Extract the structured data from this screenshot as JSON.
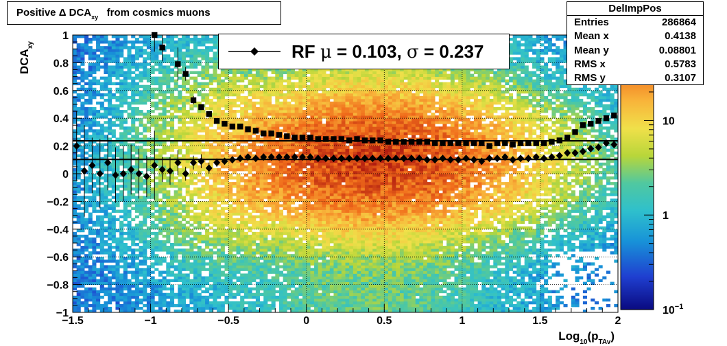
{
  "chart_data": {
    "type": "heatmap",
    "title": "Positive Δ DCA",
    "title_sub": "xy",
    "title_suffix": "from cosmics muons",
    "xlabel": "Log",
    "xlabel_sub1": "10",
    "xlabel_mid": "(p",
    "xlabel_sub2": "TAv",
    "xlabel_end": ")",
    "ylabel": "DCA",
    "ylabel_sub": "xy",
    "xlim": [
      -1.5,
      2
    ],
    "ylim": [
      -1,
      1
    ],
    "log_z": true,
    "grid": true,
    "x_ticks": [
      "−1.5",
      "−1",
      "−0.5",
      "0",
      "0.5",
      "1",
      "1.5",
      "2"
    ],
    "x_tick_values": [
      -1.5,
      -1,
      -0.5,
      0,
      0.5,
      1,
      1.5,
      2
    ],
    "y_ticks": [
      "−1",
      "−0.8",
      "−0.6",
      "−0.4",
      "−0.2",
      "0",
      "0.2",
      "0.4",
      "0.6",
      "0.8",
      "1"
    ],
    "y_tick_values": [
      -1,
      -0.8,
      -0.6,
      -0.4,
      -0.2,
      0,
      0.2,
      0.4,
      0.6,
      0.8,
      1
    ],
    "z_ticks": [
      "10",
      "1",
      "10"
    ],
    "z_tick_sups": [
      "",
      "",
      "−1"
    ],
    "z_tick_values": [
      10,
      1,
      0.1
    ],
    "zlim": [
      0.1,
      80
    ],
    "stats": {
      "name": "DelImpPos",
      "rows": [
        {
          "label": "Entries",
          "value": "286864"
        },
        {
          "label": "Mean x",
          "value": "0.4138"
        },
        {
          "label": "Mean y",
          "value": "0.08801"
        },
        {
          "label": "RMS x",
          "value": "0.5783"
        },
        {
          "label": "RMS y",
          "value": "0.3107"
        }
      ]
    },
    "legend": {
      "text_rf": "RF ",
      "mu": "μ",
      "text_mid": " =  0.103, ",
      "sigma": "σ",
      "text_end": " =   0.237"
    },
    "fit_lines": [
      {
        "name": "mean",
        "y": 0.103
      },
      {
        "name": "mean+sigma",
        "y": 0.237
      }
    ],
    "series": [
      {
        "name": "mean",
        "marker": "diamond",
        "x": [
          -1.475,
          -1.425,
          -1.375,
          -1.325,
          -1.275,
          -1.225,
          -1.175,
          -1.125,
          -1.075,
          -1.025,
          -0.975,
          -0.925,
          -0.875,
          -0.825,
          -0.775,
          -0.725,
          -0.675,
          -0.625,
          -0.575,
          -0.525,
          -0.475,
          -0.425,
          -0.375,
          -0.325,
          -0.275,
          -0.225,
          -0.175,
          -0.125,
          -0.075,
          -0.025,
          0.025,
          0.075,
          0.125,
          0.175,
          0.225,
          0.275,
          0.325,
          0.375,
          0.425,
          0.475,
          0.525,
          0.575,
          0.625,
          0.675,
          0.725,
          0.775,
          0.825,
          0.875,
          0.925,
          0.975,
          1.025,
          1.075,
          1.125,
          1.175,
          1.225,
          1.275,
          1.325,
          1.375,
          1.425,
          1.475,
          1.525,
          1.575,
          1.625,
          1.675,
          1.725,
          1.775,
          1.825,
          1.875,
          1.925,
          1.975
        ],
        "y": [
          0.2,
          0.02,
          0.06,
          0.0,
          0.08,
          -0.01,
          0.0,
          0.03,
          0.0,
          -0.02,
          0.06,
          0.03,
          0.02,
          0.08,
          0.0,
          0.08,
          0.09,
          0.04,
          0.08,
          0.09,
          0.1,
          0.11,
          0.12,
          0.11,
          0.12,
          0.12,
          0.12,
          0.12,
          0.12,
          0.12,
          0.12,
          0.11,
          0.11,
          0.11,
          0.11,
          0.11,
          0.11,
          0.11,
          0.11,
          0.11,
          0.11,
          0.11,
          0.11,
          0.11,
          0.11,
          0.1,
          0.1,
          0.11,
          0.1,
          0.1,
          0.11,
          0.1,
          0.09,
          0.11,
          0.11,
          0.12,
          0.1,
          0.11,
          0.11,
          0.12,
          0.11,
          0.12,
          0.13,
          0.15,
          0.15,
          0.16,
          0.18,
          0.19,
          0.22,
          0.21
        ],
        "err": [
          0.25,
          0.33,
          0.2,
          0.25,
          0.2,
          0.2,
          0.2,
          0.18,
          0.18,
          0.15,
          0.25,
          0.09,
          0.1,
          0.09,
          0.05,
          0.05,
          0.05,
          0.04,
          0.03,
          0.02,
          0.02,
          0.01,
          0.01,
          0.01,
          0.01,
          0.01,
          0.01,
          0.01,
          0.01,
          0.01,
          0.01,
          0.01,
          0.01,
          0.01,
          0.01,
          0.01,
          0.01,
          0.01,
          0.01,
          0.01,
          0.01,
          0.01,
          0.01,
          0.01,
          0.01,
          0.01,
          0.01,
          0.01,
          0.01,
          0.01,
          0.01,
          0.01,
          0.01,
          0.01,
          0.01,
          0.01,
          0.01,
          0.01,
          0.01,
          0.01,
          0.01,
          0.01,
          0.01,
          0.01,
          0.01,
          0.01,
          0.01,
          0.01,
          0.01,
          0.01
        ]
      },
      {
        "name": "rms",
        "marker": "square",
        "x": [
          -0.975,
          -0.925,
          -0.825,
          -0.775,
          -0.725,
          -0.675,
          -0.625,
          -0.575,
          -0.525,
          -0.475,
          -0.425,
          -0.375,
          -0.325,
          -0.275,
          -0.225,
          -0.175,
          -0.125,
          -0.075,
          -0.025,
          0.025,
          0.075,
          0.125,
          0.175,
          0.225,
          0.275,
          0.325,
          0.375,
          0.425,
          0.475,
          0.525,
          0.575,
          0.625,
          0.675,
          0.725,
          0.775,
          0.825,
          0.875,
          0.925,
          0.975,
          1.025,
          1.075,
          1.125,
          1.175,
          1.225,
          1.275,
          1.325,
          1.375,
          1.425,
          1.475,
          1.525,
          1.575,
          1.625,
          1.675,
          1.725,
          1.775,
          1.825,
          1.875,
          1.925,
          1.975
        ],
        "y": [
          1.0,
          0.91,
          0.79,
          0.72,
          0.53,
          0.48,
          0.43,
          0.38,
          0.36,
          0.34,
          0.34,
          0.32,
          0.31,
          0.29,
          0.29,
          0.28,
          0.27,
          0.26,
          0.26,
          0.26,
          0.25,
          0.25,
          0.25,
          0.25,
          0.24,
          0.25,
          0.24,
          0.24,
          0.24,
          0.23,
          0.23,
          0.23,
          0.23,
          0.23,
          0.23,
          0.22,
          0.22,
          0.22,
          0.22,
          0.22,
          0.22,
          0.22,
          0.2,
          0.22,
          0.22,
          0.21,
          0.22,
          0.22,
          0.22,
          0.22,
          0.23,
          0.24,
          0.26,
          0.3,
          0.35,
          0.36,
          0.38,
          0.4,
          0.42
        ],
        "err": [
          0.12,
          0.1,
          0.12,
          0.05,
          0.03,
          0.02,
          0.02,
          0.01,
          0.01,
          0.01,
          0.01,
          0.01,
          0.01,
          0.01,
          0.01,
          0.01,
          0.01,
          0.01,
          0.01,
          0.01,
          0.01,
          0.01,
          0.01,
          0.01,
          0.01,
          0.01,
          0.01,
          0.01,
          0.01,
          0.01,
          0.01,
          0.01,
          0.01,
          0.01,
          0.01,
          0.01,
          0.01,
          0.01,
          0.01,
          0.01,
          0.01,
          0.01,
          0.01,
          0.01,
          0.01,
          0.01,
          0.01,
          0.01,
          0.01,
          0.01,
          0.01,
          0.01,
          0.01,
          0.01,
          0.01,
          0.01,
          0.01,
          0.01,
          0.01
        ]
      }
    ]
  }
}
